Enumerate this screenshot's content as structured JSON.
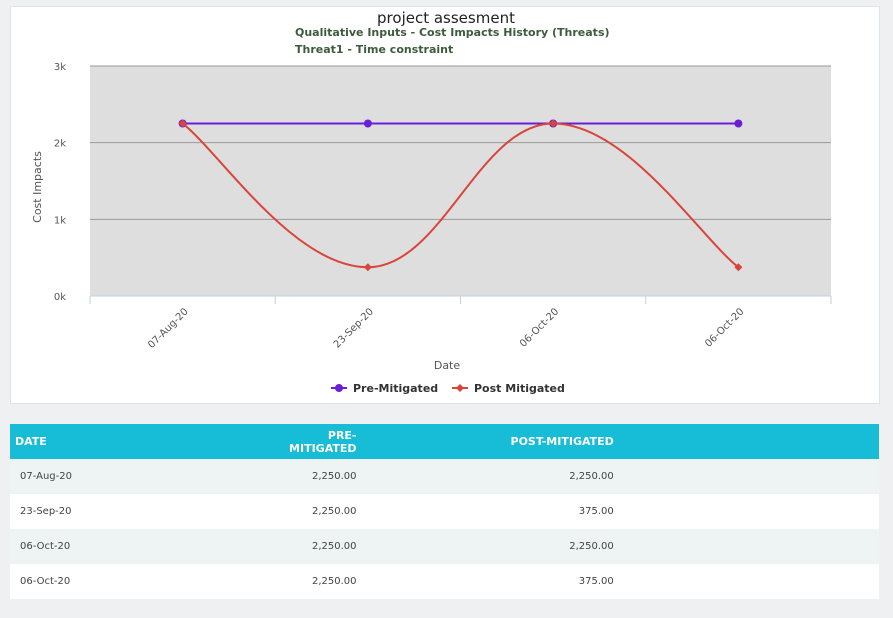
{
  "chart_data": {
    "type": "line",
    "title": "project assesment",
    "subtitle_1": "Qualitative Inputs - Cost Impacts History (Threats)",
    "subtitle_2": "Threat1 - Time constraint",
    "xlabel": "Date",
    "ylabel": "Cost Impacts",
    "categories": [
      "07-Aug-20",
      "23-Sep-20",
      "06-Oct-20",
      "06-Oct-20"
    ],
    "y_ticks": [
      {
        "value": 0,
        "label": "0k"
      },
      {
        "value": 1000,
        "label": "1k"
      },
      {
        "value": 2000,
        "label": "2k"
      },
      {
        "value": 3000,
        "label": "3k"
      }
    ],
    "ylim": [
      0,
      3000
    ],
    "grid": true,
    "legend_position": "bottom",
    "plot_background": "#dedede",
    "series": [
      {
        "name": "Pre-Mitigated",
        "values": [
          2250,
          2250,
          2250,
          2250
        ],
        "color": "#6a1fd6",
        "marker": "circle",
        "curve": "straight"
      },
      {
        "name": "Post Mitigated",
        "values": [
          2250,
          375,
          2250,
          375
        ],
        "color": "#d9453a",
        "marker": "diamond",
        "curve": "smooth"
      }
    ]
  },
  "table": {
    "headers": {
      "date": "DATE",
      "pre": "PRE-MITIGATED",
      "post": "POST-MITIGATED"
    },
    "rows": [
      {
        "date": "07-Aug-20",
        "pre": "2,250.00",
        "post": "2,250.00"
      },
      {
        "date": "23-Sep-20",
        "pre": "2,250.00",
        "post": "375.00"
      },
      {
        "date": "06-Oct-20",
        "pre": "2,250.00",
        "post": "2,250.00"
      },
      {
        "date": "06-Oct-20",
        "pre": "2,250.00",
        "post": "375.00"
      }
    ]
  }
}
